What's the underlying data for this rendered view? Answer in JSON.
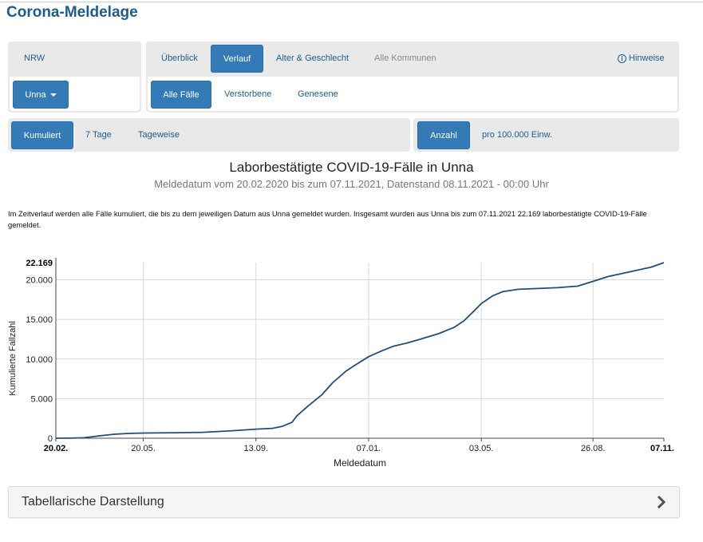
{
  "header": {
    "title": "Corona-Meldelage"
  },
  "region": {
    "state_label": "NRW",
    "district_button": "Unna"
  },
  "tabs": {
    "items": [
      "Überblick",
      "Verlauf",
      "Alter & Geschlecht",
      "Alle Kommunen"
    ],
    "active": "Verlauf",
    "hint_label": "Hinweise"
  },
  "case_filters": {
    "items": [
      "Alle Fälle",
      "Verstorbene",
      "Genesene"
    ],
    "active": "Alle Fälle"
  },
  "aggregation": {
    "items": [
      "Kumuliert",
      "7 Tage",
      "Tageweise"
    ],
    "active": "Kumuliert"
  },
  "units": {
    "items": [
      "Anzahl",
      "pro 100.000 Einw."
    ],
    "active": "Anzahl"
  },
  "chart_heading": {
    "title": "Laborbestätigte COVID-19-Fälle in Unna",
    "subtitle": "Meldedatum vom 20.02.2020 bis zum 07.11.2021, Datenstand 08.11.2021 - 00:00 Uhr"
  },
  "description": "Im Zeitverlauf werden alle Fälle kumuliert, die bis zu dem jeweiligen Datum aus Unna gemeldet wurden. Insgesamt wurden aus Unna bis zum 07.11.2021 22.169 laborbestätigte COVID-19-Fälle gemeldet.",
  "chart_data": {
    "type": "line",
    "xlabel": "Meldedatum",
    "ylabel": "Kumulierte Fallzahl",
    "x_start": "20.02.2020",
    "x_end": "07.11.2021",
    "x_ticks": [
      {
        "label": "20.02.",
        "date": "2020-02-20",
        "bold": true
      },
      {
        "label": "20.05.",
        "date": "2020-05-20",
        "bold": false
      },
      {
        "label": "13.09.",
        "date": "2020-09-13",
        "bold": false
      },
      {
        "label": "07.01.",
        "date": "2021-01-07",
        "bold": false
      },
      {
        "label": "03.05.",
        "date": "2021-05-03",
        "bold": false
      },
      {
        "label": "26.08.",
        "date": "2021-08-26",
        "bold": false
      },
      {
        "label": "07.11.",
        "date": "2021-11-07",
        "bold": true
      }
    ],
    "y_ticks": [
      {
        "label": "0",
        "value": 0
      },
      {
        "label": "5.000",
        "value": 5000
      },
      {
        "label": "10.000",
        "value": 10000
      },
      {
        "label": "15.000",
        "value": 15000
      },
      {
        "label": "20.000",
        "value": 20000
      }
    ],
    "y_max_label": "22.169",
    "ylim": [
      0,
      22169
    ],
    "grid": true,
    "color": "#1f4e79",
    "series": [
      {
        "points": [
          [
            "2020-02-20",
            0
          ],
          [
            "2020-03-05",
            10
          ],
          [
            "2020-03-20",
            60
          ],
          [
            "2020-04-05",
            300
          ],
          [
            "2020-04-20",
            500
          ],
          [
            "2020-05-05",
            600
          ],
          [
            "2020-05-20",
            650
          ],
          [
            "2020-06-20",
            700
          ],
          [
            "2020-07-20",
            750
          ],
          [
            "2020-08-20",
            950
          ],
          [
            "2020-09-13",
            1150
          ],
          [
            "2020-09-30",
            1250
          ],
          [
            "2020-10-10",
            1500
          ],
          [
            "2020-10-20",
            2000
          ],
          [
            "2020-10-25",
            2800
          ],
          [
            "2020-11-05",
            4000
          ],
          [
            "2020-11-20",
            5500
          ],
          [
            "2020-12-01",
            7000
          ],
          [
            "2020-12-15",
            8500
          ],
          [
            "2020-12-25",
            9300
          ],
          [
            "2021-01-07",
            10300
          ],
          [
            "2021-01-20",
            11000
          ],
          [
            "2021-02-01",
            11600
          ],
          [
            "2021-02-15",
            12000
          ],
          [
            "2021-03-01",
            12500
          ],
          [
            "2021-03-20",
            13200
          ],
          [
            "2021-04-05",
            14000
          ],
          [
            "2021-04-15",
            14800
          ],
          [
            "2021-04-25",
            16000
          ],
          [
            "2021-05-03",
            17000
          ],
          [
            "2021-05-15",
            18000
          ],
          [
            "2021-05-25",
            18500
          ],
          [
            "2021-06-10",
            18800
          ],
          [
            "2021-07-01",
            18900
          ],
          [
            "2021-07-20",
            19000
          ],
          [
            "2021-08-10",
            19200
          ],
          [
            "2021-08-26",
            19800
          ],
          [
            "2021-09-10",
            20400
          ],
          [
            "2021-09-25",
            20800
          ],
          [
            "2021-10-10",
            21200
          ],
          [
            "2021-10-25",
            21600
          ],
          [
            "2021-11-07",
            22169
          ]
        ]
      }
    ]
  },
  "table_section": {
    "label": "Tabellarische Darstellung"
  }
}
